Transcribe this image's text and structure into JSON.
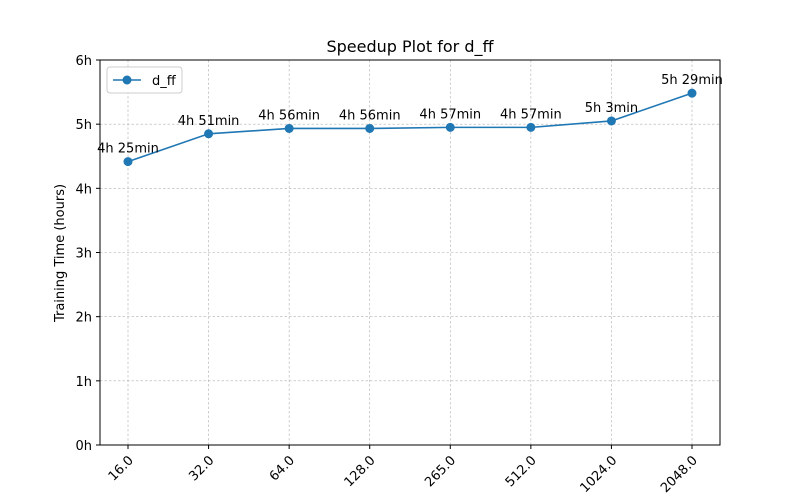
{
  "chart_data": {
    "type": "line",
    "title": "Speedup Plot for d_ff",
    "xlabel": "",
    "ylabel": "Training Time (hours)",
    "categories": [
      "16.0",
      "32.0",
      "64.0",
      "128.0",
      "265.0",
      "512.0",
      "1024.0",
      "2048.0"
    ],
    "series": [
      {
        "name": "d_ff",
        "values": [
          4.4167,
          4.85,
          4.9333,
          4.9333,
          4.95,
          4.95,
          5.05,
          5.4833
        ],
        "labels": [
          "4h 25min",
          "4h 51min",
          "4h 56min",
          "4h 56min",
          "4h 57min",
          "4h 57min",
          "5h 3min",
          "5h 29min"
        ]
      }
    ],
    "ylim": [
      0,
      6
    ],
    "yticks": [
      0,
      1,
      2,
      3,
      4,
      5,
      6
    ],
    "ytick_labels": [
      "0h",
      "1h",
      "2h",
      "3h",
      "4h",
      "5h",
      "6h"
    ],
    "grid": true,
    "legend_position": "top-left",
    "line_color": "#1f77b4",
    "grid_color": "#b0b0b0"
  }
}
